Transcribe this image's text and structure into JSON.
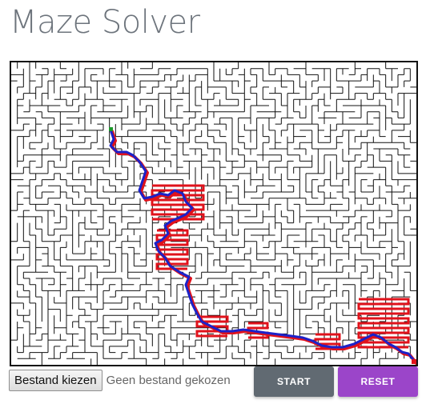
{
  "header": {
    "title": "Maze Solver"
  },
  "maze": {
    "cols": 66,
    "rows": 49,
    "wall_color": "#111111",
    "explored_color": "#e0121b",
    "path_color": "#1c22c8",
    "start_marker_color": "#1b9a2a",
    "end_marker_color": "#e0121b"
  },
  "controls": {
    "file_button_label": "Bestand kiezen",
    "file_status": "Geen bestand gekozen",
    "start_label": "START",
    "reset_label": "RESET",
    "start_color": "#616a72",
    "reset_color": "#9b45c9"
  }
}
